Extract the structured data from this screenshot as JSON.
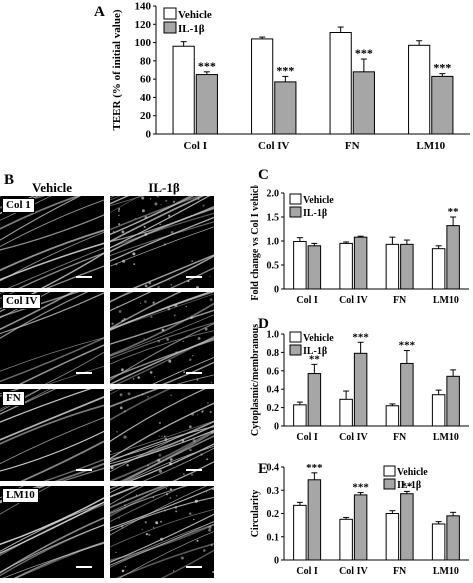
{
  "chart_data": [
    {
      "id": "A",
      "type": "bar",
      "ylabel": "TEER (% of initial value)",
      "ylim": [
        0,
        140
      ],
      "yticks": [
        0,
        20,
        40,
        60,
        80,
        100,
        120,
        140
      ],
      "categories": [
        "Col I",
        "Col IV",
        "FN",
        "LM10"
      ],
      "series": [
        {
          "name": "Vehicle",
          "fill": "#ffffff",
          "values": [
            96,
            104,
            111,
            97
          ],
          "errors": [
            5,
            2,
            6,
            5
          ]
        },
        {
          "name": "IL-1β",
          "fill": "#a6a6a6",
          "values": [
            65,
            57,
            68,
            63
          ],
          "errors": [
            3,
            6,
            14,
            3
          ],
          "sig": [
            "***",
            "***",
            "***",
            "***"
          ]
        }
      ],
      "legend": "top-left"
    },
    {
      "id": "C",
      "type": "bar",
      "ylabel": "Fold change vs Col I vehicle",
      "ylim": [
        0,
        2.0
      ],
      "yticks": [
        "0",
        "0.5",
        "1.0",
        "1.5",
        "2.0"
      ],
      "categories": [
        "Col I",
        "Col IV",
        "FN",
        "LM10"
      ],
      "series": [
        {
          "name": "Vehicle",
          "fill": "#ffffff",
          "values": [
            0.99,
            0.95,
            0.93,
            0.84
          ],
          "errors": [
            0.08,
            0.03,
            0.15,
            0.06
          ]
        },
        {
          "name": "IL-1β",
          "fill": "#a6a6a6",
          "values": [
            0.9,
            1.08,
            0.93,
            1.32
          ],
          "errors": [
            0.05,
            0.02,
            0.09,
            0.18
          ],
          "sig": [
            "",
            "",
            "",
            "**"
          ]
        }
      ],
      "legend": "top-left"
    },
    {
      "id": "D",
      "type": "bar",
      "ylabel": "Cytoplasmic/membranous",
      "ylim": [
        0,
        1.0
      ],
      "yticks": [
        "0",
        "0.2",
        "0.4",
        "0.6",
        "0.8",
        "1.0"
      ],
      "categories": [
        "Col I",
        "Col IV",
        "FN",
        "LM10"
      ],
      "series": [
        {
          "name": "Vehicle",
          "fill": "#ffffff",
          "values": [
            0.23,
            0.29,
            0.22,
            0.34
          ],
          "errors": [
            0.03,
            0.09,
            0.02,
            0.05
          ]
        },
        {
          "name": "IL-1β",
          "fill": "#a6a6a6",
          "values": [
            0.57,
            0.79,
            0.68,
            0.54
          ],
          "errors": [
            0.1,
            0.12,
            0.14,
            0.07
          ],
          "sig": [
            "**",
            "***",
            "***",
            ""
          ]
        }
      ],
      "legend": "top-left"
    },
    {
      "id": "E",
      "type": "bar",
      "ylabel": "Circularity",
      "ylim": [
        0,
        0.4
      ],
      "yticks": [
        "0",
        "0.1",
        "0.2",
        "0.3",
        "0.4"
      ],
      "categories": [
        "Col I",
        "Col IV",
        "FN",
        "LM10"
      ],
      "series": [
        {
          "name": "Vehicle",
          "fill": "#ffffff",
          "values": [
            0.235,
            0.175,
            0.2,
            0.155
          ],
          "errors": [
            0.013,
            0.008,
            0.012,
            0.01
          ]
        },
        {
          "name": "IL-1β",
          "fill": "#a6a6a6",
          "values": [
            0.345,
            0.28,
            0.285,
            0.19
          ],
          "errors": [
            0.03,
            0.01,
            0.01,
            0.015
          ],
          "sig": [
            "***",
            "***",
            "**",
            ""
          ]
        }
      ],
      "legend": "top-right"
    }
  ],
  "panel_b": {
    "letter": "B",
    "col_labels": [
      "Vehicle",
      "IL-1β"
    ],
    "row_labels": [
      "Col 1",
      "Col IV",
      "FN",
      "LM10"
    ]
  }
}
